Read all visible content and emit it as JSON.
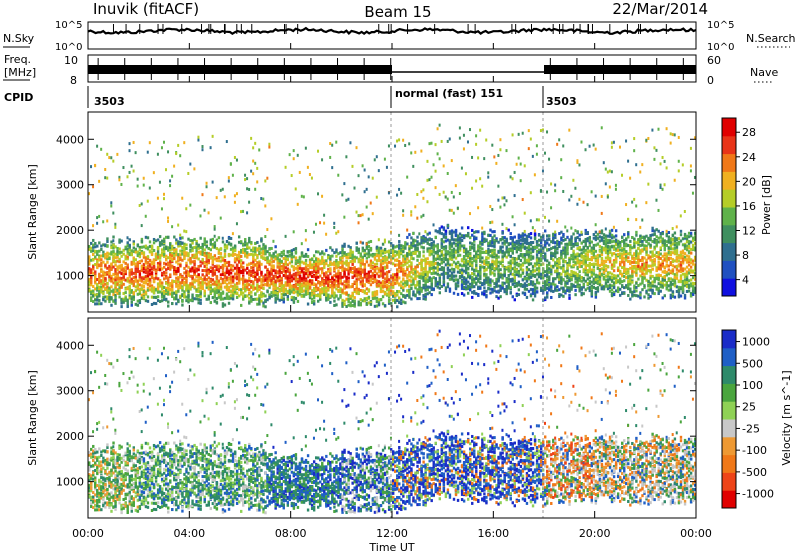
{
  "header": {
    "station": "Inuvik (fitACF)",
    "beam": "Beam 15",
    "date": "22/Mar/2014"
  },
  "top_panels": {
    "nsky_label": "N.Sky",
    "nsky_ticks": [
      "10^5",
      "10^0"
    ],
    "nsearch_label": "N.Search",
    "nsearch_ticks": [
      "10^5",
      "10^0"
    ],
    "freq_label": "Freq.",
    "freq_unit": "[MHz]",
    "freq_ticks": [
      "10",
      "8"
    ],
    "nave_label": "Nave",
    "nave_ticks": [
      "60",
      "0"
    ],
    "cpid_label": "CPID",
    "cpid_segments": [
      {
        "label": "3503",
        "start_hour": 0.0,
        "end_hour": 12.0
      },
      {
        "label": "normal (fast) 151",
        "start_hour": 12.0,
        "end_hour": 18.0
      },
      {
        "label": "3503",
        "start_hour": 18.0,
        "end_hour": 24.0
      }
    ]
  },
  "chart_data": [
    {
      "type": "heatmap",
      "title": "",
      "quantity": "Power",
      "xlabel": "",
      "ylabel": "Slant Range [km]",
      "xlim_hours": [
        0,
        24
      ],
      "ylim": [
        200,
        4600
      ],
      "yticks": [
        "1000",
        "2000",
        "3000",
        "4000"
      ],
      "colorbar": {
        "label": "Power [dB]",
        "ticks": [
          "28",
          "24",
          "20",
          "16",
          "12",
          "8",
          "4"
        ],
        "range": [
          0,
          30
        ],
        "colors": [
          "#1010e0",
          "#2050c0",
          "#2f6f8f",
          "#3f8f5f",
          "#5fb24a",
          "#b5cd28",
          "#f0b020",
          "#f07818",
          "#e83418",
          "#e00000"
        ]
      },
      "main_band": {
        "center_km": [
          1050,
          1060,
          1100,
          1080,
          980,
          950,
          1000,
          1350,
          1250,
          1200,
          1250,
          1250,
          1250
        ],
        "intensity_db": [
          22,
          24,
          24,
          25,
          25,
          26,
          23,
          12,
          14,
          12,
          18,
          20,
          20
        ]
      }
    },
    {
      "type": "heatmap",
      "title": "",
      "quantity": "Velocity",
      "xlabel": "Time UT",
      "ylabel": "Slant Range [km]",
      "xlim_hours": [
        0,
        24
      ],
      "ylim": [
        200,
        4600
      ],
      "yticks": [
        "1000",
        "2000",
        "3000",
        "4000"
      ],
      "xticks": [
        "00:00",
        "04:00",
        "08:00",
        "12:00",
        "16:00",
        "20:00",
        "00:00"
      ],
      "colorbar": {
        "label": "Velocity [m s^-1]",
        "ticks": [
          "1000",
          "500",
          "100",
          "25",
          "-25",
          "-100",
          "-500",
          "-1000"
        ],
        "colors": [
          "#1a2cc8",
          "#1f5fc6",
          "#2e8a6a",
          "#4aa53e",
          "#8fd155",
          "#c8c8c8",
          "#ee9933",
          "#f07818",
          "#ee4418",
          "#e00000"
        ]
      }
    }
  ]
}
